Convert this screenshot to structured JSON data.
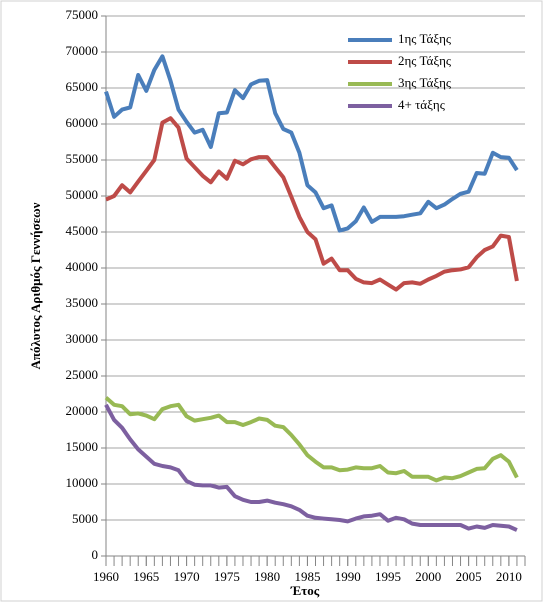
{
  "chart_data": {
    "type": "line",
    "x_label": "Έτος",
    "y_label": "Απόλυτος Αριθμός Γεννήσεων",
    "x": [
      1960,
      1961,
      1962,
      1963,
      1964,
      1965,
      1966,
      1967,
      1968,
      1969,
      1970,
      1971,
      1972,
      1973,
      1974,
      1975,
      1976,
      1977,
      1978,
      1979,
      1980,
      1981,
      1982,
      1983,
      1984,
      1985,
      1986,
      1987,
      1988,
      1989,
      1990,
      1991,
      1992,
      1993,
      1994,
      1995,
      1996,
      1997,
      1998,
      1999,
      2000,
      2001,
      2002,
      2003,
      2004,
      2005,
      2006,
      2007,
      2008,
      2009,
      2010,
      2011
    ],
    "series": [
      {
        "name": "1ης Τάξης",
        "color": "#4a7ebb",
        "values": [
          64500,
          61000,
          62000,
          62300,
          66800,
          64600,
          67500,
          69400,
          66000,
          62000,
          60300,
          58800,
          59200,
          56800,
          61500,
          61600,
          64700,
          63600,
          65500,
          66000,
          66100,
          61500,
          59300,
          58800,
          56000,
          51500,
          50500,
          48300,
          48700,
          45200,
          45500,
          46500,
          48400,
          46400,
          47100,
          47100,
          47100,
          47200,
          47400,
          47600,
          49200,
          48300,
          48800,
          49600,
          50300,
          50600,
          53200,
          53100,
          56000,
          55400,
          55300,
          53600
        ]
      },
      {
        "name": "2ης Τάξης",
        "color": "#be4b48",
        "values": [
          49500,
          50000,
          51500,
          50500,
          52000,
          53500,
          55000,
          60200,
          60800,
          59500,
          55200,
          54000,
          52800,
          51900,
          53400,
          52400,
          54900,
          54400,
          55100,
          55400,
          55400,
          54000,
          52600,
          49900,
          47100,
          45000,
          44000,
          40600,
          41300,
          39700,
          39700,
          38500,
          38000,
          37900,
          38400,
          37700,
          37000,
          37900,
          38000,
          37800,
          38400,
          38900,
          39500,
          39700,
          39800,
          40100,
          41500,
          42500,
          43000,
          44500,
          44300,
          38200
        ]
      },
      {
        "name": "3ης Τάξης",
        "color": "#98b954",
        "values": [
          22000,
          21000,
          20800,
          19700,
          19800,
          19500,
          19000,
          20400,
          20800,
          21000,
          19400,
          18800,
          19000,
          19200,
          19500,
          18600,
          18600,
          18200,
          18600,
          19100,
          18900,
          18100,
          17900,
          16800,
          15500,
          14000,
          13100,
          12300,
          12300,
          11900,
          12000,
          12300,
          12200,
          12200,
          12500,
          11600,
          11500,
          11800,
          11000,
          11000,
          11000,
          10500,
          10900,
          10800,
          11100,
          11600,
          12100,
          12200,
          13500,
          14000,
          13100,
          10900
        ]
      },
      {
        "name": "4+ τάξης",
        "color": "#7d60a0",
        "values": [
          21000,
          18900,
          17800,
          16200,
          14800,
          13800,
          12800,
          12500,
          12300,
          11900,
          10400,
          9900,
          9800,
          9800,
          9500,
          9600,
          8300,
          7800,
          7500,
          7500,
          7700,
          7400,
          7200,
          6900,
          6400,
          5600,
          5300,
          5200,
          5100,
          5000,
          4800,
          5200,
          5500,
          5600,
          5800,
          4900,
          5300,
          5100,
          4500,
          4300,
          4300,
          4300,
          4300,
          4300,
          4300,
          3800,
          4100,
          3900,
          4300,
          4200,
          4100,
          3600
        ]
      }
    ],
    "xlim": [
      1960,
      2012
    ],
    "xticks": [
      1960,
      1965,
      1970,
      1975,
      1980,
      1985,
      1990,
      1995,
      2000,
      2005,
      2010
    ],
    "ylim": [
      0,
      75000
    ],
    "yticks": [
      0,
      5000,
      10000,
      15000,
      20000,
      25000,
      30000,
      35000,
      40000,
      45000,
      50000,
      55000,
      60000,
      65000,
      70000,
      75000
    ],
    "grid": true,
    "legend": "top-right"
  }
}
